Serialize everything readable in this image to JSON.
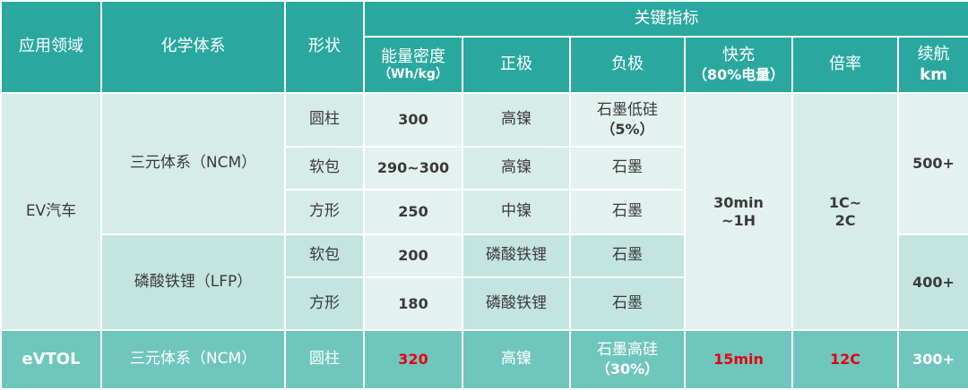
{
  "headers": {
    "app_domain": "应用领域",
    "chemistry": "化学体系",
    "shape": "形状",
    "key_metrics": "关键指标",
    "energy_density": "能量密度",
    "energy_density_unit": "（Wh/kg）",
    "cathode": "正极",
    "anode": "负极",
    "fast_charge": "快充",
    "fast_charge_note": "（80%电量）",
    "rate": "倍率",
    "range": "续航",
    "range_unit": "km"
  },
  "ev": {
    "domain": "EV汽车",
    "ncm_label": "三元体系（NCM）",
    "lfp_label": "磷酸铁锂（LFP）",
    "fast_charge_line1": "30min",
    "fast_charge_line2": "~1H",
    "rate_line1": "1C~",
    "rate_line2": "2C",
    "range_ncm": "500+",
    "range_lfp": "400+",
    "rows": [
      {
        "shape": "圆柱",
        "energy": "300",
        "cathode": "高镍",
        "anode_line1": "石墨低硅",
        "anode_line2": "（5%）"
      },
      {
        "shape": "软包",
        "energy": "290~300",
        "cathode": "高镍",
        "anode_line1": "石墨",
        "anode_line2": ""
      },
      {
        "shape": "方形",
        "energy": "250",
        "cathode": "中镍",
        "anode_line1": "石墨",
        "anode_line2": ""
      },
      {
        "shape": "软包",
        "energy": "200",
        "cathode": "磷酸铁锂",
        "anode_line1": "石墨",
        "anode_line2": ""
      },
      {
        "shape": "方形",
        "energy": "180",
        "cathode": "磷酸铁锂",
        "anode_line1": "石墨",
        "anode_line2": ""
      }
    ]
  },
  "evtol": {
    "domain": "eVTOL",
    "chemistry": "三元体系（NCM）",
    "shape": "圆柱",
    "energy": "320",
    "cathode": "高镍",
    "anode_line1": "石墨高硅",
    "anode_line2": "（30%）",
    "fast_charge": "15min",
    "rate": "12C",
    "range": "300+"
  },
  "colors": {
    "header_bg": "#2aa89f",
    "evtol_bg": "#6fc6bc",
    "highlight_red": "#e60012"
  }
}
